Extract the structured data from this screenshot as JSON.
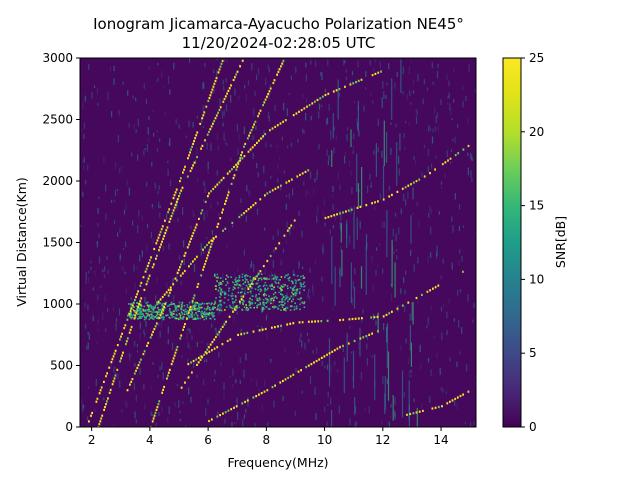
{
  "chart_data": {
    "type": "heatmap",
    "title": "Ionogram Jicamarca-Ayacucho Polarization NE45°",
    "subtitle": "11/20/2024-02:28:05 UTC",
    "xlabel": "Frequency(MHz)",
    "ylabel": "Virtual Distance(Km)",
    "colorbar_label": "SNR[dB]",
    "colormap": "viridis",
    "xlim": [
      1.6,
      15.2
    ],
    "ylim": [
      0,
      3000
    ],
    "clim": [
      0,
      25
    ],
    "x_ticks": [
      2,
      4,
      6,
      8,
      10,
      12,
      14
    ],
    "y_ticks": [
      0,
      500,
      1000,
      1500,
      2000,
      2500,
      3000
    ],
    "colorbar_ticks": [
      0,
      5,
      10,
      15,
      20,
      25
    ],
    "grid": false,
    "traces": [
      {
        "kind": "echo-line",
        "points": [
          [
            4.0,
            0
          ],
          [
            7.2,
            2280
          ],
          [
            8.6,
            3000
          ]
        ]
      },
      {
        "kind": "echo-line",
        "points": [
          [
            1.8,
            0
          ],
          [
            5.0,
            2000
          ],
          [
            6.5,
            3000
          ]
        ]
      },
      {
        "kind": "echo-line",
        "points": [
          [
            2.2,
            0
          ],
          [
            3.6,
            1000
          ],
          [
            5.0,
            1900
          ],
          [
            6.0,
            2400
          ],
          [
            7.2,
            3000
          ]
        ]
      },
      {
        "kind": "echo-line",
        "points": [
          [
            5.0,
            300
          ],
          [
            7.0,
            1000
          ],
          [
            9.0,
            1700
          ]
        ]
      },
      {
        "kind": "echo-line",
        "points": [
          [
            3.2,
            300
          ],
          [
            4.5,
            1000
          ],
          [
            6.0,
            1900
          ],
          [
            8.0,
            2400
          ],
          [
            10.0,
            2700
          ],
          [
            12.0,
            2900
          ]
        ]
      },
      {
        "kind": "echo-line",
        "points": [
          [
            4.2,
            1000
          ],
          [
            6.0,
            1500
          ],
          [
            8.0,
            1900
          ],
          [
            9.5,
            2100
          ]
        ]
      },
      {
        "kind": "echo-line",
        "points": [
          [
            5.2,
            500
          ],
          [
            7.0,
            750
          ],
          [
            9.0,
            850
          ],
          [
            10.5,
            870
          ],
          [
            12.0,
            900
          ],
          [
            13.5,
            1100
          ],
          [
            15.0,
            1300
          ]
        ]
      },
      {
        "kind": "echo-line",
        "points": [
          [
            6.0,
            50
          ],
          [
            8.0,
            300
          ],
          [
            10.5,
            650
          ],
          [
            12.0,
            800
          ]
        ]
      },
      {
        "kind": "echo-line",
        "points": [
          [
            10.0,
            1700
          ],
          [
            12.0,
            1850
          ],
          [
            13.5,
            2050
          ],
          [
            15.0,
            2300
          ]
        ]
      },
      {
        "kind": "echo-line",
        "points": [
          [
            12.8,
            100
          ],
          [
            14.0,
            170
          ],
          [
            15.0,
            300
          ]
        ]
      }
    ],
    "patches": [
      {
        "kind": "spread-layer",
        "x": [
          3.2,
          6.2
        ],
        "y": [
          880,
          1020
        ]
      },
      {
        "kind": "spread-layer",
        "x": [
          6.2,
          9.3
        ],
        "y": [
          950,
          1250
        ]
      }
    ]
  }
}
